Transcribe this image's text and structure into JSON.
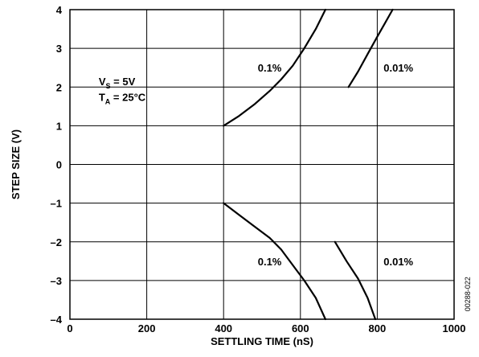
{
  "chart_data": {
    "type": "line",
    "xlabel": "SETTLING TIME (nS)",
    "ylabel": "STEP SIZE (V)",
    "xlim": [
      0,
      1000
    ],
    "ylim": [
      -4,
      4
    ],
    "x_ticks": [
      0,
      200,
      400,
      600,
      800,
      1000
    ],
    "y_ticks": [
      4,
      3,
      2,
      1,
      0,
      -1,
      -2,
      -3,
      -4
    ],
    "x_tick_labels": [
      "0",
      "200",
      "400",
      "600",
      "800",
      "1000"
    ],
    "y_tick_labels": [
      "4",
      "3",
      "2",
      "1",
      "0",
      "–1",
      "–2",
      "–3",
      "–4"
    ],
    "grid": true,
    "annotations": {
      "vs_label": "V",
      "vs_sub": "S",
      "vs_value": " = 5V",
      "ta_label": "T",
      "ta_sub": "A",
      "ta_value": " = 25°C",
      "figure_id": "00288-022"
    },
    "series": [
      {
        "name": "0.1%",
        "label_position": [
          520,
          2.5
        ],
        "points": [
          [
            400,
            1.0
          ],
          [
            440,
            1.25
          ],
          [
            480,
            1.55
          ],
          [
            520,
            1.9
          ],
          [
            550,
            2.2
          ],
          [
            580,
            2.55
          ],
          [
            610,
            3.0
          ],
          [
            640,
            3.5
          ],
          [
            665,
            4.0
          ]
        ]
      },
      {
        "name": "0.01%",
        "label_position": [
          855,
          2.5
        ],
        "points": [
          [
            725,
            2.0
          ],
          [
            750,
            2.4
          ],
          [
            775,
            2.85
          ],
          [
            800,
            3.3
          ],
          [
            820,
            3.65
          ],
          [
            840,
            4.0
          ]
        ]
      },
      {
        "name": "0.1%",
        "label_position": [
          520,
          -2.5
        ],
        "points": [
          [
            400,
            -1.0
          ],
          [
            440,
            -1.3
          ],
          [
            480,
            -1.6
          ],
          [
            520,
            -1.9
          ],
          [
            550,
            -2.2
          ],
          [
            580,
            -2.6
          ],
          [
            610,
            -3.0
          ],
          [
            640,
            -3.45
          ],
          [
            665,
            -4.0
          ]
        ]
      },
      {
        "name": "0.01%",
        "label_position": [
          855,
          -2.5
        ],
        "points": [
          [
            690,
            -2.0
          ],
          [
            720,
            -2.5
          ],
          [
            750,
            -2.95
          ],
          [
            775,
            -3.45
          ],
          [
            795,
            -4.0
          ]
        ]
      }
    ]
  }
}
